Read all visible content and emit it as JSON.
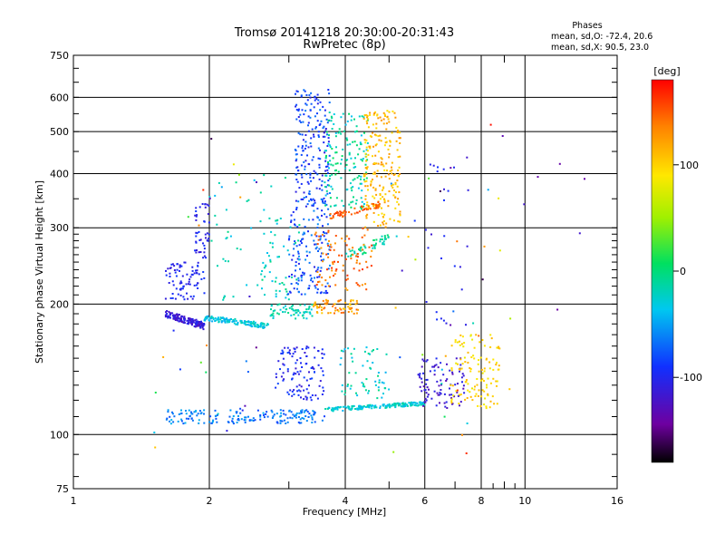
{
  "chart_data": {
    "type": "scatter",
    "title": "Tromsø 20141218 20:30:00-20:31:43",
    "subtitle": "RwPretec (8p)",
    "xlabel": "Frequency [MHz]",
    "ylabel": "Stationary phase Virtual Height [km]",
    "x_scale": "log",
    "y_scale": "log",
    "xlim": [
      1,
      16
    ],
    "ylim": [
      75,
      750
    ],
    "x_ticks": [
      1,
      2,
      4,
      6,
      8,
      10,
      16
    ],
    "x_tick_labels": [
      "1",
      "2",
      "4",
      "6",
      "8",
      "10",
      "16"
    ],
    "x_minor_ticks": [
      3,
      5,
      7,
      9
    ],
    "y_ticks": [
      75,
      100,
      200,
      300,
      400,
      500,
      600,
      750
    ],
    "y_tick_labels": [
      "75",
      "100",
      "200",
      "300",
      "400",
      "500",
      "600",
      "750"
    ],
    "grid": true,
    "colorbar": {
      "label": "[deg]",
      "range": [
        -180,
        180
      ],
      "ticks": [
        100,
        0,
        -100
      ],
      "tick_labels": [
        "100",
        "0",
        "-100"
      ]
    },
    "stats": {
      "heading": "Phases",
      "line_o": "mean, sd,O: -72.4, 20.6",
      "line_x": "mean, sd,X:  90.5, 23.0"
    },
    "clusters": [
      {
        "f": [
          1.6,
          1.95
        ],
        "h": [
          165,
          185
        ],
        "phase": [
          -130,
          -95
        ],
        "n": 160,
        "shape": "trend",
        "h2": [
          190,
          178
        ]
      },
      {
        "f": [
          1.95,
          2.7
        ],
        "h": [
          175,
          190
        ],
        "phase": [
          -50,
          -15
        ],
        "n": 130,
        "shape": "trend",
        "h2": [
          186,
          178
        ]
      },
      {
        "f": [
          2.7,
          3.4
        ],
        "h": [
          185,
          200
        ],
        "phase": [
          -35,
          0
        ],
        "n": 60,
        "shape": "box"
      },
      {
        "f": [
          3.4,
          4.3
        ],
        "h": [
          190,
          205
        ],
        "phase": [
          100,
          150
        ],
        "n": 70,
        "shape": "box"
      },
      {
        "f": [
          1.6,
          1.95
        ],
        "h": [
          205,
          250
        ],
        "phase": [
          -115,
          -85
        ],
        "n": 80,
        "shape": "box"
      },
      {
        "f": [
          1.85,
          2.0
        ],
        "h": [
          255,
          345
        ],
        "phase": [
          -115,
          -85
        ],
        "n": 45,
        "shape": "box"
      },
      {
        "f": [
          1.6,
          2.1
        ],
        "h": [
          106,
          114
        ],
        "phase": [
          -80,
          -40
        ],
        "n": 60,
        "shape": "box"
      },
      {
        "f": [
          2.2,
          3.6
        ],
        "h": [
          106,
          114
        ],
        "phase": [
          -85,
          -45
        ],
        "n": 110,
        "shape": "box"
      },
      {
        "f": [
          3.6,
          6.0
        ],
        "h": [
          113,
          120
        ],
        "phase": [
          -45,
          -10
        ],
        "n": 170,
        "shape": "trend",
        "h2": [
          114,
          118
        ]
      },
      {
        "f": [
          2.8,
          3.6
        ],
        "h": [
          120,
          160
        ],
        "phase": [
          -115,
          -80
        ],
        "n": 110,
        "shape": "box"
      },
      {
        "f": [
          3.9,
          5.0
        ],
        "h": [
          120,
          160
        ],
        "phase": [
          -45,
          0
        ],
        "n": 60,
        "shape": "box"
      },
      {
        "f": [
          5.8,
          7.4
        ],
        "h": [
          115,
          150
        ],
        "phase": [
          -135,
          -100
        ],
        "n": 90,
        "shape": "box"
      },
      {
        "f": [
          6.8,
          8.8
        ],
        "h": [
          115,
          170
        ],
        "phase": [
          80,
          115
        ],
        "n": 120,
        "shape": "box"
      },
      {
        "f": [
          3.0,
          3.7
        ],
        "h": [
          210,
          330
        ],
        "phase": [
          -105,
          -55
        ],
        "n": 140,
        "shape": "box"
      },
      {
        "f": [
          3.1,
          3.7
        ],
        "h": [
          330,
          630
        ],
        "phase": [
          -110,
          -60
        ],
        "n": 200,
        "shape": "box"
      },
      {
        "f": [
          3.6,
          4.5
        ],
        "h": [
          330,
          560
        ],
        "phase": [
          -40,
          10
        ],
        "n": 150,
        "shape": "box"
      },
      {
        "f": [
          4.4,
          5.3
        ],
        "h": [
          300,
          560
        ],
        "phase": [
          90,
          130
        ],
        "n": 220,
        "shape": "box"
      },
      {
        "f": [
          3.7,
          4.8
        ],
        "h": [
          315,
          345
        ],
        "phase": [
          135,
          165
        ],
        "n": 60,
        "shape": "trend",
        "h2": [
          318,
          340
        ]
      },
      {
        "f": [
          4.0,
          5.0
        ],
        "h": [
          250,
          290
        ],
        "phase": [
          -25,
          5
        ],
        "n": 50,
        "shape": "trend",
        "h2": [
          255,
          285
        ]
      },
      {
        "f": [
          3.4,
          4.6
        ],
        "h": [
          215,
          300
        ],
        "phase": [
          120,
          165
        ],
        "n": 90,
        "shape": "box"
      },
      {
        "f": [
          2.6,
          3.2
        ],
        "h": [
          205,
          330
        ],
        "phase": [
          -40,
          0
        ],
        "n": 50,
        "shape": "box"
      },
      {
        "f": [
          2.0,
          3.0
        ],
        "h": [
          200,
          400
        ],
        "phase": [
          -40,
          0
        ],
        "n": 40,
        "shape": "box"
      },
      {
        "f": [
          1.5,
          3.0
        ],
        "h": [
          90,
          500
        ],
        "phase": [
          -180,
          180
        ],
        "n": 30,
        "shape": "box"
      },
      {
        "f": [
          5.0,
          9.5
        ],
        "h": [
          85,
          550
        ],
        "phase": [
          -180,
          180
        ],
        "n": 40,
        "shape": "box"
      },
      {
        "f": [
          6.0,
          7.5
        ],
        "h": [
          175,
          450
        ],
        "phase": [
          -120,
          -90
        ],
        "n": 25,
        "shape": "box"
      },
      {
        "f": [
          9.5,
          14
        ],
        "h": [
          190,
          480
        ],
        "phase": [
          -150,
          -110
        ],
        "n": 6,
        "shape": "box"
      }
    ]
  }
}
